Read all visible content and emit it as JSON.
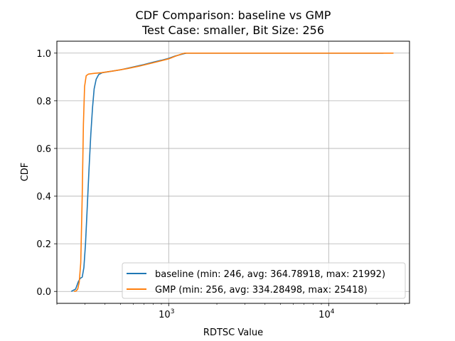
{
  "chart_data": {
    "type": "line",
    "title": "CDF Comparison: baseline vs GMP",
    "subtitle": "Test Case: smaller, Bit Size: 256",
    "xlabel": "RDTSC Value",
    "ylabel": "CDF",
    "x_scale": "log",
    "xlim": [
      200,
      32000
    ],
    "ylim": [
      -0.05,
      1.05
    ],
    "x_ticks": [
      {
        "value": 1000,
        "base": "10",
        "exp": "3"
      },
      {
        "value": 10000,
        "base": "10",
        "exp": "4"
      }
    ],
    "y_ticks": [
      {
        "value": 0.0,
        "label": "0.0"
      },
      {
        "value": 0.2,
        "label": "0.2"
      },
      {
        "value": 0.4,
        "label": "0.4"
      },
      {
        "value": 0.6,
        "label": "0.6"
      },
      {
        "value": 0.8,
        "label": "0.8"
      },
      {
        "value": 1.0,
        "label": "1.0"
      }
    ],
    "grid": true,
    "legend_position": "lower-right",
    "series": [
      {
        "name": "baseline (min: 246, avg: 364.78918, max: 21992)",
        "color": "#1f77b4",
        "points": [
          [
            246,
            0.0
          ],
          [
            262,
            0.01
          ],
          [
            272,
            0.04
          ],
          [
            280,
            0.055
          ],
          [
            288,
            0.06
          ],
          [
            295,
            0.1
          ],
          [
            302,
            0.2
          ],
          [
            310,
            0.36
          ],
          [
            318,
            0.52
          ],
          [
            326,
            0.66
          ],
          [
            334,
            0.77
          ],
          [
            342,
            0.85
          ],
          [
            352,
            0.89
          ],
          [
            365,
            0.91
          ],
          [
            385,
            0.918
          ],
          [
            420,
            0.922
          ],
          [
            500,
            0.93
          ],
          [
            600,
            0.942
          ],
          [
            700,
            0.952
          ],
          [
            800,
            0.962
          ],
          [
            900,
            0.97
          ],
          [
            1000,
            0.978
          ],
          [
            1100,
            0.988
          ],
          [
            1250,
            0.998
          ],
          [
            1300,
            1.0
          ],
          [
            21992,
            1.0
          ]
        ]
      },
      {
        "name": "GMP (min: 256, avg: 334.28498, max: 25418)",
        "color": "#ff7f0e",
        "points": [
          [
            256,
            0.0
          ],
          [
            264,
            0.002
          ],
          [
            270,
            0.01
          ],
          [
            276,
            0.04
          ],
          [
            282,
            0.12
          ],
          [
            288,
            0.4
          ],
          [
            293,
            0.7
          ],
          [
            298,
            0.86
          ],
          [
            305,
            0.905
          ],
          [
            315,
            0.912
          ],
          [
            340,
            0.915
          ],
          [
            380,
            0.918
          ],
          [
            450,
            0.925
          ],
          [
            550,
            0.935
          ],
          [
            650,
            0.945
          ],
          [
            750,
            0.955
          ],
          [
            850,
            0.964
          ],
          [
            1000,
            0.976
          ],
          [
            1100,
            0.987
          ],
          [
            1200,
            0.996
          ],
          [
            1260,
            1.0
          ],
          [
            25418,
            1.0
          ]
        ]
      }
    ]
  }
}
